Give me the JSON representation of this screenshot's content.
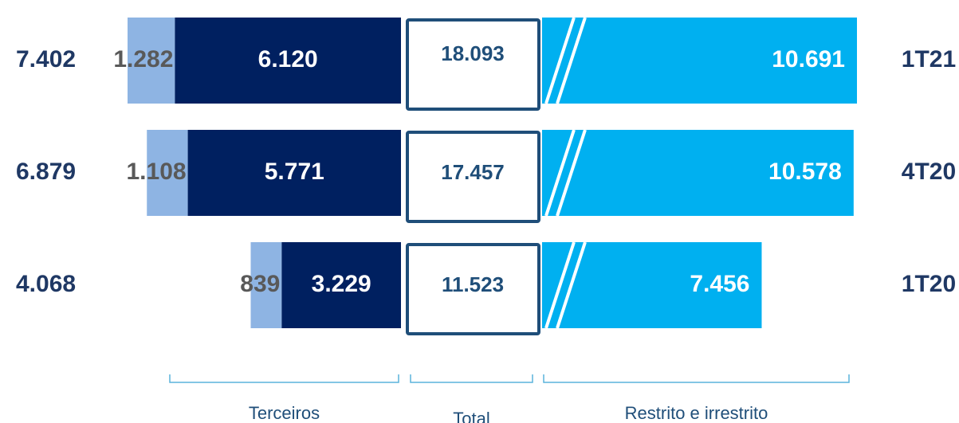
{
  "chart_data": {
    "type": "bar",
    "categories": [
      "1T21",
      "4T20",
      "1T20"
    ],
    "groups": [
      "Terceiros",
      "Total",
      "Restrito e irrestrito"
    ],
    "third_party_totals": {
      "values": [
        7402,
        6879,
        4068
      ],
      "value_labels": [
        "7.402",
        "6.879",
        "4.068"
      ]
    },
    "totals": {
      "values": [
        18093,
        17457,
        11523
      ],
      "value_labels": [
        "18.093",
        "17.457",
        "11.523"
      ]
    },
    "series": [
      {
        "color": "#8eb4e3",
        "values": [
          1282,
          1108,
          839
        ],
        "value_labels": [
          "1.282",
          "1.108",
          "839"
        ]
      },
      {
        "color": "#002060",
        "values": [
          6120,
          5771,
          3229
        ],
        "value_labels": [
          "6.120",
          "5.771",
          "3.229"
        ]
      },
      {
        "color": "#00b0f0",
        "values": [
          10691,
          10578,
          7456
        ],
        "value_labels": [
          "10.691",
          "10.578",
          "7.456"
        ]
      }
    ]
  }
}
